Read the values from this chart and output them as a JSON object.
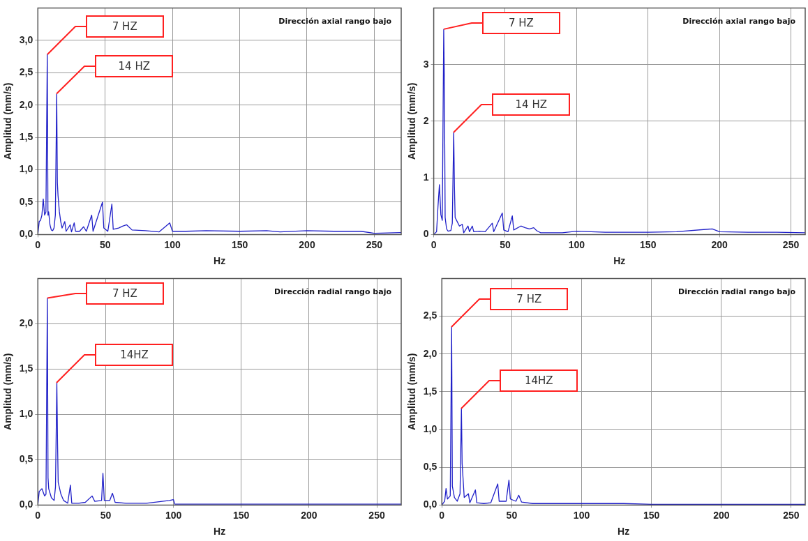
{
  "chart_data": [
    {
      "type": "line",
      "xlabel": "Hz",
      "ylabel": "Amplitud (mm/s)",
      "xlim": [
        0,
        270
      ],
      "ylim": [
        0,
        3.5
      ],
      "xticks": [
        0,
        50,
        100,
        150,
        200,
        250
      ],
      "yticks": [
        {
          "value": 0,
          "label": "0,0"
        },
        {
          "value": 0.5,
          "label": "0,5"
        },
        {
          "value": 1,
          "label": "1,0"
        },
        {
          "value": 1.5,
          "label": "1,5"
        },
        {
          "value": 2,
          "label": "2,0"
        },
        {
          "value": 2.5,
          "label": "2,5"
        },
        {
          "value": 3,
          "label": "3,0"
        }
      ],
      "grid": true,
      "legend": false,
      "marker": "none",
      "line_style": "solid",
      "annotations": [
        "Dirección axial rango bajo",
        "7 HZ",
        "14 HZ"
      ],
      "series": [
        {
          "color": "#2020c8",
          "x": [
            0,
            1,
            2,
            3,
            4,
            5,
            6,
            7,
            7.5,
            8,
            9,
            10,
            11,
            12,
            13,
            14,
            14.5,
            15,
            16,
            17,
            18,
            20,
            21,
            24,
            25,
            27,
            28,
            31,
            34,
            36,
            40,
            41,
            48,
            49,
            52,
            55,
            56,
            60,
            63,
            66,
            70,
            80,
            90,
            98,
            100,
            110,
            125,
            150,
            170,
            180,
            200,
            220,
            240,
            250,
            270
          ],
          "values": [
            0,
            0.2,
            0.22,
            0.3,
            0.55,
            0.3,
            0.35,
            2.78,
            0.3,
            0.35,
            0.15,
            0.07,
            0.06,
            0.1,
            0.3,
            2.17,
            0.8,
            0.6,
            0.35,
            0.2,
            0.1,
            0.2,
            0.05,
            0.15,
            0.04,
            0.18,
            0.05,
            0.05,
            0.12,
            0.05,
            0.3,
            0.05,
            0.5,
            0.1,
            0.05,
            0.47,
            0.08,
            0.1,
            0.13,
            0.15,
            0.07,
            0.06,
            0.04,
            0.18,
            0.05,
            0.05,
            0.06,
            0.05,
            0.06,
            0.04,
            0.06,
            0.05,
            0.05,
            0.02,
            0.03
          ]
        }
      ]
    },
    {
      "type": "line",
      "xlabel": "Hz",
      "ylabel": "Amplitud (mm/s)",
      "xlim": [
        0,
        260
      ],
      "ylim": [
        0,
        4
      ],
      "xticks": [
        0,
        50,
        100,
        150,
        200,
        250
      ],
      "yticks": [
        0,
        1,
        2,
        3
      ],
      "grid": true,
      "legend": false,
      "marker": "none",
      "line_style": "solid",
      "annotations": [
        "Dirección axial rango bajo",
        "7 HZ",
        "14 HZ"
      ],
      "series": [
        {
          "color": "#2020c8",
          "x": [
            0,
            2,
            3,
            4,
            5,
            6,
            7,
            7.5,
            8,
            9,
            10,
            12,
            13,
            14,
            14.5,
            15,
            16,
            18,
            20,
            21,
            24,
            25,
            27,
            28,
            32,
            36,
            41,
            42,
            48,
            49,
            52,
            55,
            56,
            61,
            64,
            67,
            70,
            72,
            75,
            90,
            100,
            120,
            150,
            170,
            195,
            200,
            220,
            240,
            260
          ],
          "values": [
            0,
            0.05,
            0.5,
            0.88,
            0.35,
            0.25,
            3.62,
            2.6,
            0.3,
            0.1,
            0.06,
            0.07,
            0.2,
            1.8,
            0.85,
            0.3,
            0.25,
            0.15,
            0.18,
            0.03,
            0.15,
            0.05,
            0.15,
            0.05,
            0.06,
            0.05,
            0.2,
            0.05,
            0.38,
            0.08,
            0.05,
            0.33,
            0.08,
            0.15,
            0.12,
            0.1,
            0.12,
            0.07,
            0.03,
            0.03,
            0.06,
            0.04,
            0.04,
            0.05,
            0.1,
            0.05,
            0.04,
            0.04,
            0.03
          ]
        }
      ]
    },
    {
      "type": "line",
      "xlabel": "Hz",
      "ylabel": "Amplitud (mm/s)",
      "xlim": [
        0,
        268
      ],
      "ylim": [
        0,
        2.5
      ],
      "xticks": [
        0,
        50,
        100,
        150,
        200,
        250
      ],
      "yticks": [
        {
          "value": 0,
          "label": "0,0"
        },
        {
          "value": 0.5,
          "label": "0,5"
        },
        {
          "value": 1,
          "label": "1,0"
        },
        {
          "value": 1.5,
          "label": "1,5"
        },
        {
          "value": 2,
          "label": "2,0"
        }
      ],
      "grid": true,
      "legend": false,
      "marker": "none",
      "line_style": "solid",
      "annotations": [
        "Dirección radial rango bajo",
        "7 HZ",
        "14HZ"
      ],
      "series": [
        {
          "color": "#2020c8",
          "x": [
            0,
            1,
            3,
            5,
            6,
            7,
            7.5,
            8,
            10,
            12,
            13,
            14,
            14.5,
            15,
            17,
            19,
            22,
            24,
            25,
            30,
            35,
            40,
            42,
            47,
            48,
            49,
            53,
            55,
            57,
            65,
            80,
            97,
            100,
            101,
            130,
            150,
            200,
            268
          ],
          "values": [
            0,
            0.15,
            0.18,
            0.1,
            0.12,
            2.28,
            0.3,
            0.18,
            0.08,
            0.05,
            0.2,
            1.35,
            0.7,
            0.25,
            0.12,
            0.05,
            0.02,
            0.22,
            0.02,
            0.02,
            0.03,
            0.1,
            0.04,
            0.05,
            0.35,
            0.05,
            0.05,
            0.13,
            0.03,
            0.02,
            0.02,
            0.05,
            0.06,
            0.01,
            0.01,
            0.01,
            0.01,
            0.01
          ]
        }
      ]
    },
    {
      "type": "line",
      "xlabel": "Hz",
      "ylabel": "Amplitud (mm/s)",
      "xlim": [
        0,
        260
      ],
      "ylim": [
        0,
        3
      ],
      "xticks": [
        0,
        50,
        100,
        150,
        200,
        250
      ],
      "yticks": [
        {
          "value": 0,
          "label": "0,0"
        },
        {
          "value": 0.5,
          "label": "0,5"
        },
        {
          "value": 1,
          "label": "1,0"
        },
        {
          "value": 1.5,
          "label": "1,5"
        },
        {
          "value": 2,
          "label": "2,0"
        },
        {
          "value": 2.5,
          "label": "2,5"
        }
      ],
      "grid": true,
      "legend": false,
      "marker": "none",
      "line_style": "solid",
      "annotations": [
        "Dirección radial rango bajo",
        "7 HZ",
        "14HZ"
      ],
      "series": [
        {
          "color": "#2020c8",
          "x": [
            0,
            2,
            3,
            4,
            6,
            7,
            7.5,
            9,
            11,
            13,
            14,
            14.5,
            16,
            19,
            20,
            24,
            25,
            30,
            35,
            40,
            41,
            46,
            48,
            49,
            53,
            55,
            57,
            65,
            80,
            100,
            130,
            150,
            200,
            260
          ],
          "values": [
            0,
            0.05,
            0.22,
            0.08,
            0.12,
            2.36,
            0.25,
            0.1,
            0.05,
            0.15,
            1.28,
            0.55,
            0.1,
            0.15,
            0.03,
            0.2,
            0.03,
            0.02,
            0.03,
            0.28,
            0.05,
            0.05,
            0.33,
            0.08,
            0.05,
            0.13,
            0.04,
            0.02,
            0.02,
            0.02,
            0.02,
            0.01,
            0.01,
            0.01
          ]
        }
      ]
    }
  ]
}
